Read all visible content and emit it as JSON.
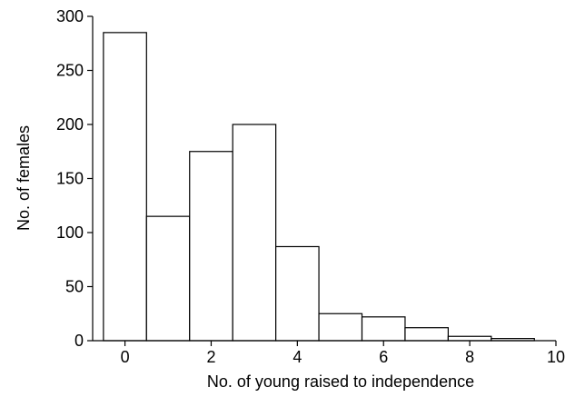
{
  "chart_data": {
    "type": "bar",
    "title": "",
    "xlabel": "No. of young raised to independence",
    "ylabel": "No. of females",
    "categories": [
      "0",
      "1",
      "2",
      "3",
      "4",
      "5",
      "6",
      "7",
      "8",
      "9"
    ],
    "x": [
      0,
      1,
      2,
      3,
      4,
      5,
      6,
      7,
      8,
      9
    ],
    "values": [
      285,
      115,
      175,
      200,
      87,
      25,
      22,
      12,
      4,
      2
    ],
    "xlim": [
      -0.75,
      10
    ],
    "ylim": [
      0,
      300
    ],
    "xticks": [
      "0",
      "2",
      "4",
      "6",
      "8",
      "10"
    ],
    "yticks": [
      "0",
      "50",
      "100",
      "150",
      "200",
      "250",
      "300"
    ],
    "grid": false,
    "bar_color": "#ffffff",
    "edge_color": "#000000"
  }
}
